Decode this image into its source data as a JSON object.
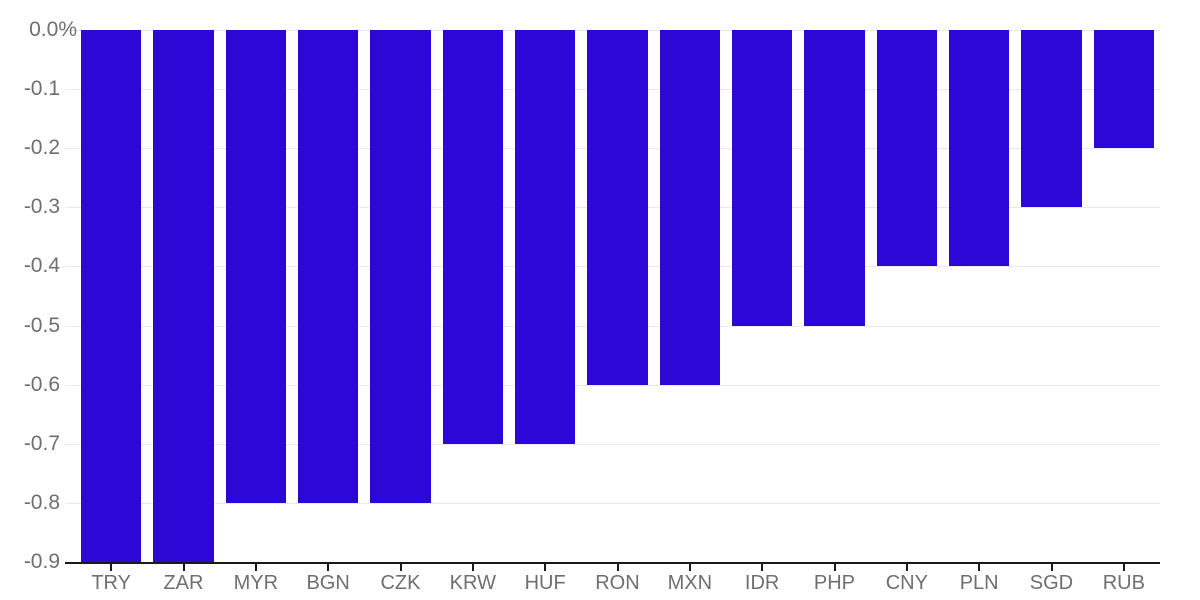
{
  "chart_data": {
    "type": "bar",
    "title": "",
    "xlabel": "",
    "ylabel": "",
    "categories": [
      "TRY",
      "ZAR",
      "MYR",
      "BGN",
      "CZK",
      "KRW",
      "HUF",
      "RON",
      "MXN",
      "IDR",
      "PHP",
      "CNY",
      "PLN",
      "SGD",
      "RUB"
    ],
    "values": [
      -0.9,
      -0.9,
      -0.8,
      -0.8,
      -0.8,
      -0.7,
      -0.7,
      -0.6,
      -0.6,
      -0.5,
      -0.5,
      -0.4,
      -0.4,
      -0.3,
      -0.2
    ],
    "unit": "%",
    "ylim": [
      -0.9,
      0.0
    ],
    "ytick_step": 0.1,
    "yticks": [
      0.0,
      -0.1,
      -0.2,
      -0.3,
      -0.4,
      -0.5,
      -0.6,
      -0.7,
      -0.8,
      -0.9
    ],
    "ytick_labels": [
      "0.0%",
      "-0.1",
      "-0.2",
      "-0.3",
      "-0.4",
      "-0.5",
      "-0.6",
      "-0.7",
      "-0.8",
      "-0.9"
    ],
    "grid": true,
    "legend": "none"
  },
  "style": {
    "background_color": "#ffffff",
    "bar_color": "#2c08d6",
    "grid_color": "#e9e9e9",
    "axis_color": "#1a1a1a",
    "tick_label_color": "#6f6f6f"
  }
}
